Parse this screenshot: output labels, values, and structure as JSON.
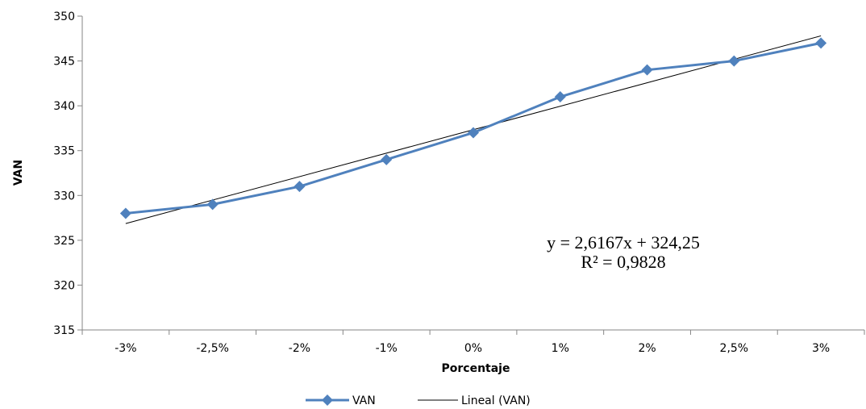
{
  "chart_data": {
    "type": "line",
    "categories": [
      "-3%",
      "-2,5%",
      "-2%",
      "-1%",
      "0%",
      "1%",
      "2%",
      "2,5%",
      "3%"
    ],
    "series": [
      {
        "name": "VAN",
        "values": [
          328,
          329,
          331,
          334,
          337,
          341,
          344,
          345,
          347
        ],
        "color": "#4F81BD",
        "marker": "diamond"
      }
    ],
    "trendline": {
      "name": "Lineal (VAN)",
      "type": "linear",
      "slope": 2.6167,
      "intercept": 324.25,
      "color": "#000000",
      "equation_label": "y = 2,6167x + 324,25",
      "r2_label": "R² = 0,9828"
    },
    "y_ticks": [
      "315",
      "320",
      "325",
      "330",
      "335",
      "340",
      "345",
      "350"
    ],
    "ylim": [
      315,
      350
    ],
    "ylabel": "VAN",
    "xlabel": "Porcentaje",
    "grid": false,
    "legend_position": "bottom"
  }
}
